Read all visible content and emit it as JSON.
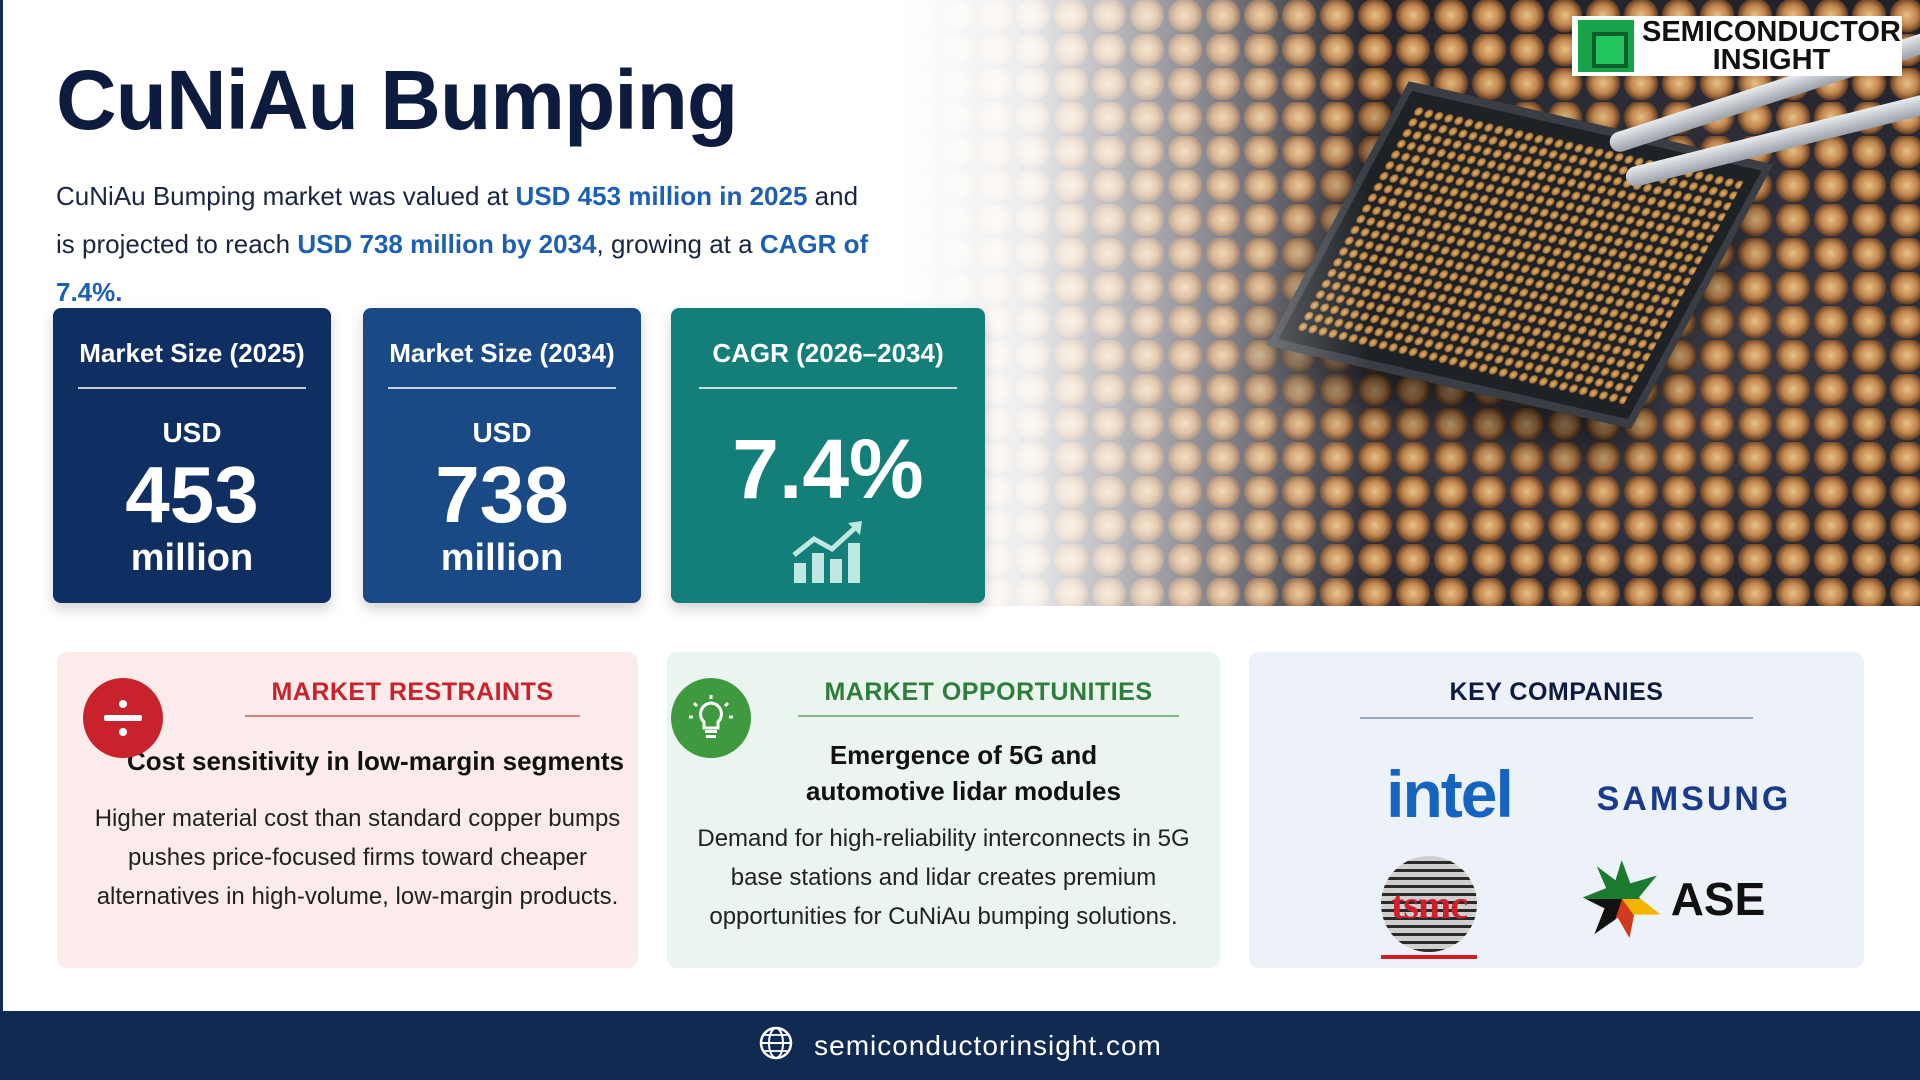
{
  "logo": {
    "line1": "SEMICONDUCTOR",
    "line2": "INSIGHT",
    "brand_color": "#17a34a"
  },
  "header": {
    "title": "CuNiAu Bumping",
    "intro": {
      "p1": "CuNiAu Bumping market was valued at ",
      "h1": "USD 453 million in 2025",
      "p2": " and",
      "p3": "is projected to reach ",
      "h2": "USD 738 million by 2034",
      "p4": ", growing at a ",
      "h3": "CAGR of 7.4%",
      "p5": "."
    }
  },
  "stats": {
    "size_2025": {
      "label": "Market Size (2025)",
      "unit": "USD",
      "value": "453",
      "scale": "million"
    },
    "size_2034": {
      "label": "Market Size (2034)",
      "unit": "USD",
      "value": "738",
      "scale": "million"
    },
    "cagr": {
      "label": "CAGR (2026–2034)",
      "value": "7.4%",
      "icon": "growth-chart-icon"
    }
  },
  "restraints": {
    "heading": "MARKET RESTRAINTS",
    "subhead": "Cost sensitivity in low-margin segments",
    "body_lines": [
      "Higher material cost than standard copper bumps",
      "pushes price-focused firms toward cheaper",
      "alternatives  in high-volume, low-margin products."
    ],
    "icon": "minus-divide-icon",
    "color": "#c8232c"
  },
  "opportunities": {
    "heading": "MARKET OPPORTUNITIES",
    "subhead_lines": [
      "Emergence of 5G and",
      "automotive lidar modules"
    ],
    "body_lines": [
      "Demand for high-reliability interconnects in 5G",
      "base stations and lidar creates premium",
      "opportunities for CuNiAu bumping solutions."
    ],
    "icon": "lightbulb-icon",
    "color": "#3f9a3f"
  },
  "companies": {
    "heading": "KEY COMPANIES",
    "list": [
      {
        "name": "intel"
      },
      {
        "name": "SAMSUNG"
      },
      {
        "name": "tsmc"
      },
      {
        "name": "ASE"
      }
    ]
  },
  "footer": {
    "url": "semiconductorinsight.com",
    "icon": "globe-icon"
  }
}
